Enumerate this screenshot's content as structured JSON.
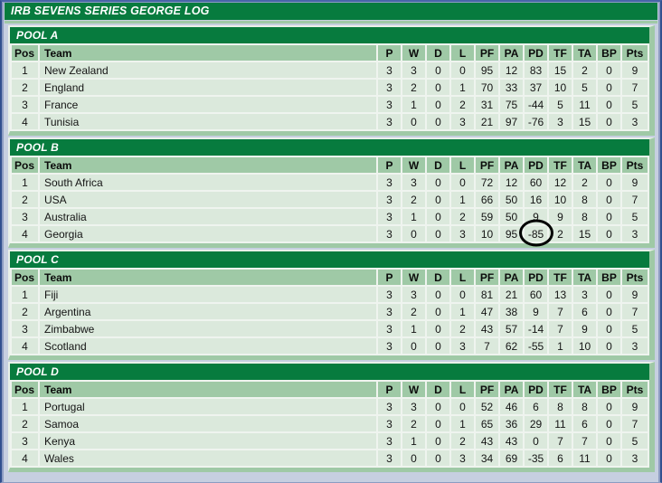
{
  "page_title": "IRB SEVENS SERIES GEORGE LOG",
  "table": {
    "columns": [
      "Pos",
      "Team",
      "P",
      "W",
      "D",
      "L",
      "PF",
      "PA",
      "PD",
      "TF",
      "TA",
      "BP",
      "Pts"
    ]
  },
  "pools": [
    {
      "name": "POOL A",
      "rows": [
        [
          "1",
          "New Zealand",
          "3",
          "3",
          "0",
          "0",
          "95",
          "12",
          "83",
          "15",
          "2",
          "0",
          "9"
        ],
        [
          "2",
          "England",
          "3",
          "2",
          "0",
          "1",
          "70",
          "33",
          "37",
          "10",
          "5",
          "0",
          "7"
        ],
        [
          "3",
          "France",
          "3",
          "1",
          "0",
          "2",
          "31",
          "75",
          "-44",
          "5",
          "11",
          "0",
          "5"
        ],
        [
          "4",
          "Tunisia",
          "3",
          "0",
          "0",
          "3",
          "21",
          "97",
          "-76",
          "3",
          "15",
          "0",
          "3"
        ]
      ]
    },
    {
      "name": "POOL B",
      "rows": [
        [
          "1",
          "South Africa",
          "3",
          "3",
          "0",
          "0",
          "72",
          "12",
          "60",
          "12",
          "2",
          "0",
          "9"
        ],
        [
          "2",
          "USA",
          "3",
          "2",
          "0",
          "1",
          "66",
          "50",
          "16",
          "10",
          "8",
          "0",
          "7"
        ],
        [
          "3",
          "Australia",
          "3",
          "1",
          "0",
          "2",
          "59",
          "50",
          "9",
          "9",
          "8",
          "0",
          "5"
        ],
        [
          "4",
          "Georgia",
          "3",
          "0",
          "0",
          "3",
          "10",
          "95",
          "-85",
          "2",
          "15",
          "0",
          "3"
        ]
      ]
    },
    {
      "name": "POOL C",
      "rows": [
        [
          "1",
          "Fiji",
          "3",
          "3",
          "0",
          "0",
          "81",
          "21",
          "60",
          "13",
          "3",
          "0",
          "9"
        ],
        [
          "2",
          "Argentina",
          "3",
          "2",
          "0",
          "1",
          "47",
          "38",
          "9",
          "7",
          "6",
          "0",
          "7"
        ],
        [
          "3",
          "Zimbabwe",
          "3",
          "1",
          "0",
          "2",
          "43",
          "57",
          "-14",
          "7",
          "9",
          "0",
          "5"
        ],
        [
          "4",
          "Scotland",
          "3",
          "0",
          "0",
          "3",
          "7",
          "62",
          "-55",
          "1",
          "10",
          "0",
          "3"
        ]
      ]
    },
    {
      "name": "POOL D",
      "rows": [
        [
          "1",
          "Portugal",
          "3",
          "3",
          "0",
          "0",
          "52",
          "46",
          "6",
          "8",
          "8",
          "0",
          "9"
        ],
        [
          "2",
          "Samoa",
          "3",
          "2",
          "0",
          "1",
          "65",
          "36",
          "29",
          "11",
          "6",
          "0",
          "7"
        ],
        [
          "3",
          "Kenya",
          "3",
          "1",
          "0",
          "2",
          "43",
          "43",
          "0",
          "7",
          "7",
          "0",
          "5"
        ],
        [
          "4",
          "Wales",
          "3",
          "0",
          "0",
          "3",
          "34",
          "69",
          "-35",
          "6",
          "11",
          "0",
          "3"
        ]
      ]
    }
  ],
  "annotation": {
    "description": "hand-drawn black ellipse circling Georgia's points difference",
    "pool_index": 1,
    "row_index": 3,
    "column_index": 8,
    "value": "-85"
  },
  "colors": {
    "dark_green": "#077B3E",
    "band_green": "#9FC9A6",
    "row_green": "#DBE9DC",
    "separator_white": "#EFF4EF",
    "page_background": "#C6CFE0",
    "window_border_blue": "#31508F",
    "title_text": "#FFFFFF",
    "body_text": "#141414",
    "annotation_stroke": "#000000"
  }
}
